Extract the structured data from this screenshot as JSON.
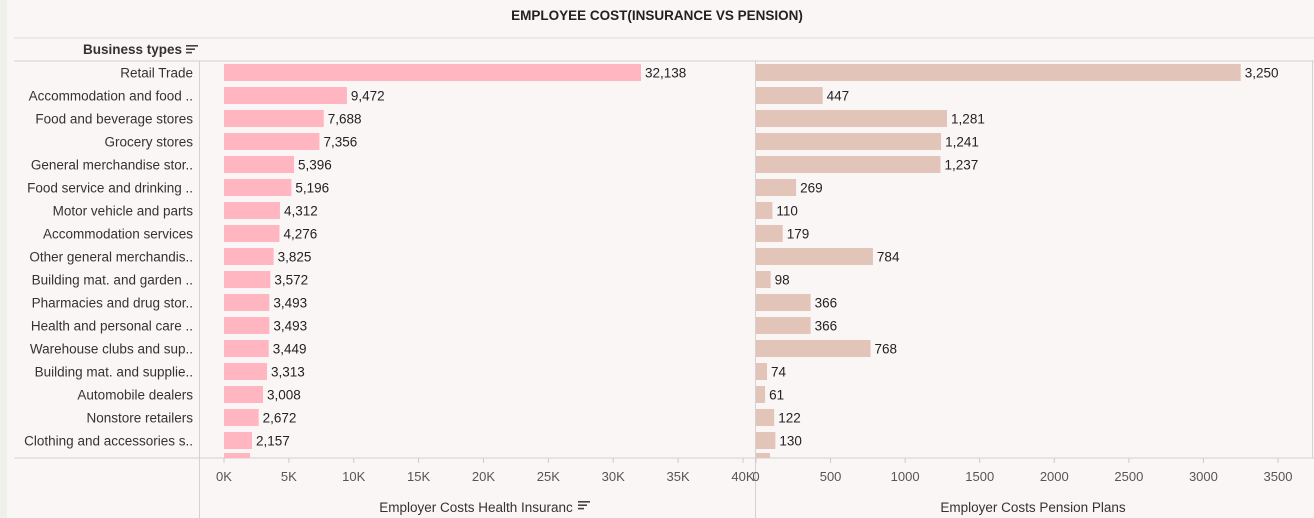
{
  "title": "EMPLOYEE COST(INSURANCE VS PENSION)",
  "rows_header": "Business types",
  "icons": {
    "sort": "sort-icon"
  },
  "colors": {
    "insurance_bar": "#ffb6c1",
    "pension_bar": "#e2c4b8",
    "background": "#fbf6f6",
    "gridline": "#d9d4d4"
  },
  "chart_data": {
    "type": "bar",
    "orientation": "horizontal",
    "categories": [
      "Retail Trade",
      "Accommodation and food ..",
      "Food and beverage stores",
      "Grocery stores",
      "General merchandise stor..",
      "Food service and drinking ..",
      "Motor vehicle and parts",
      "Accommodation services",
      "Other general merchandis..",
      "Building mat. and garden ..",
      "Pharmacies and drug stor..",
      "Health and personal care ..",
      "Warehouse clubs and sup..",
      "Building mat. and supplie..",
      "Automobile dealers",
      "Nonstore retailers",
      "Clothing and accessories s.."
    ],
    "series": [
      {
        "name": "Employer Costs Health Insurance",
        "values": [
          32138,
          9472,
          7688,
          7356,
          5396,
          5196,
          4312,
          4276,
          3825,
          3572,
          3493,
          3493,
          3449,
          3313,
          3008,
          2672,
          2157
        ],
        "labels": [
          "32,138",
          "9,472",
          "7,688",
          "7,356",
          "5,396",
          "5,196",
          "4,312",
          "4,276",
          "3,825",
          "3,572",
          "3,493",
          "3,493",
          "3,449",
          "3,313",
          "3,008",
          "2,672",
          "2,157"
        ],
        "xlim": [
          0,
          40000
        ],
        "ticks": [
          0,
          5000,
          10000,
          15000,
          20000,
          25000,
          30000,
          35000,
          40000
        ],
        "tick_labels": [
          "0K",
          "5K",
          "10K",
          "15K",
          "20K",
          "25K",
          "30K",
          "35K",
          "40K"
        ],
        "axis_title": "Employer Costs Health Insuranc"
      },
      {
        "name": "Employer Costs Pension Plans",
        "values": [
          3250,
          447,
          1281,
          1241,
          1237,
          269,
          110,
          179,
          784,
          98,
          366,
          366,
          768,
          74,
          61,
          122,
          130
        ],
        "labels": [
          "3,250",
          "447",
          "1,281",
          "1,241",
          "1,237",
          "269",
          "110",
          "179",
          "784",
          "98",
          "366",
          "366",
          "768",
          "74",
          "61",
          "122",
          "130"
        ],
        "xlim": [
          0,
          3500
        ],
        "ticks": [
          0,
          500,
          1000,
          1500,
          2000,
          2500,
          3000,
          3500
        ],
        "tick_labels": [
          "0",
          "500",
          "1000",
          "1500",
          "2000",
          "2500",
          "3000",
          "3500"
        ],
        "axis_title": "Employer Costs Pension Plans"
      }
    ],
    "grid": false,
    "legend": "none"
  }
}
